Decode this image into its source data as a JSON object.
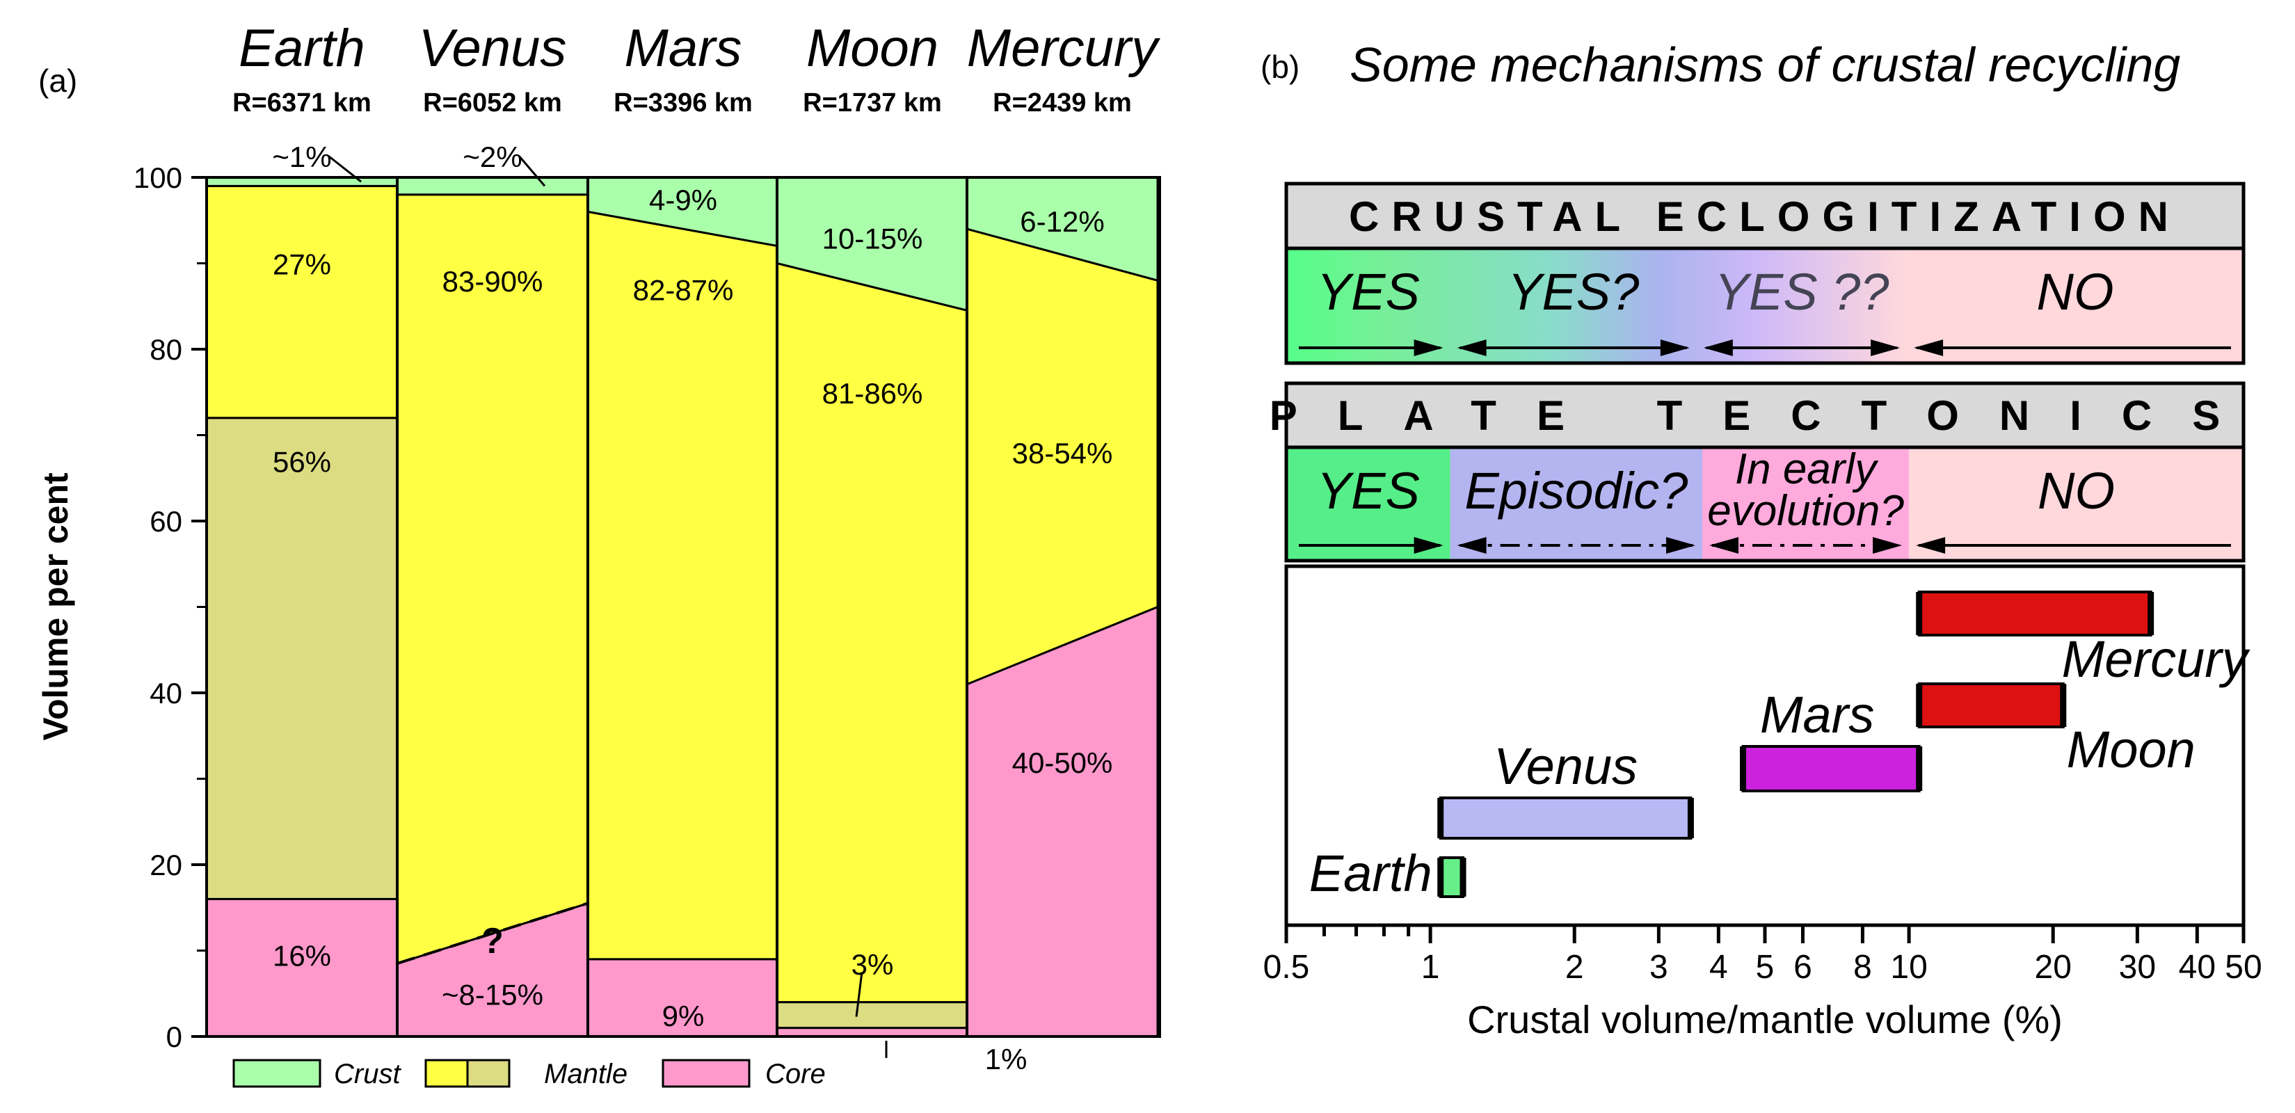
{
  "chart_data": [
    {
      "type": "bar",
      "panel_label": "(a)",
      "ylabel": "Volume per cent",
      "ylim": [
        0,
        100
      ],
      "yticks": [
        "0",
        "20",
        "40",
        "60",
        "80",
        "100"
      ],
      "categories": [
        {
          "name": "Earth",
          "radius": "R=6371 km"
        },
        {
          "name": "Venus",
          "radius": "R=6052 km"
        },
        {
          "name": "Mars",
          "radius": "R=3396 km"
        },
        {
          "name": "Moon",
          "radius": "R=1737 km"
        },
        {
          "name": "Mercury",
          "radius": "R=2439 km"
        }
      ],
      "layers": [
        {
          "name": "core",
          "color": "#ff99cc",
          "bounds": [
            [
              16,
              16
            ],
            [
              8.5,
              15.5
            ],
            [
              9,
              9
            ],
            [
              1,
              1
            ],
            [
              41,
              50
            ]
          ]
        },
        {
          "name": "lower mantle",
          "color": "#dcdc82",
          "bounds": [
            [
              72,
              72
            ],
            null,
            null,
            [
              4,
              4
            ],
            null
          ]
        },
        {
          "name": "mantle",
          "color": "#ffff44",
          "bounds": [
            [
              99,
              99
            ],
            [
              98,
              98
            ],
            [
              96,
              92
            ],
            [
              90,
              84.5
            ],
            [
              94,
              88
            ]
          ]
        },
        {
          "name": "crust",
          "color": "#aaffaa",
          "bounds": [
            [
              100,
              100
            ],
            [
              100,
              100
            ],
            [
              100,
              100
            ],
            [
              100,
              100
            ],
            [
              100,
              100
            ]
          ]
        }
      ],
      "value_labels": [
        {
          "text": "~1%",
          "bar": 0,
          "y": 102.5
        },
        {
          "text": "27%",
          "bar": 0,
          "y": 90
        },
        {
          "text": "56%",
          "bar": 0,
          "y": 67
        },
        {
          "text": "16%",
          "bar": 0,
          "y": 9.5
        },
        {
          "text": "~2%",
          "bar": 1,
          "y": 102.5
        },
        {
          "text": "83-90%",
          "bar": 1,
          "y": 88
        },
        {
          "text": "?",
          "bar": 1,
          "y": 11
        },
        {
          "text": "~8-15%",
          "bar": 1,
          "y": 5
        },
        {
          "text": "4-9%",
          "bar": 2,
          "y": 97.5
        },
        {
          "text": "82-87%",
          "bar": 2,
          "y": 87
        },
        {
          "text": "9%",
          "bar": 2,
          "y": 2.5
        },
        {
          "text": "10-15%",
          "bar": 3,
          "y": 93
        },
        {
          "text": "81-86%",
          "bar": 3,
          "y": 75
        },
        {
          "text": "3%",
          "bar": 3,
          "y": 8.5
        },
        {
          "text": "1%",
          "bar": 3,
          "y": -2.5
        },
        {
          "text": "6-12%",
          "bar": 4,
          "y": 95
        },
        {
          "text": "38-54%",
          "bar": 4,
          "y": 68
        },
        {
          "text": "40-50%",
          "bar": 4,
          "y": 32
        }
      ],
      "legend": [
        {
          "label": "Crust",
          "colors": [
            "#aaffaa"
          ]
        },
        {
          "label": "Mantle",
          "colors": [
            "#ffff44",
            "#dcdc82"
          ]
        },
        {
          "label": "Core",
          "colors": [
            "#ff99cc"
          ]
        }
      ]
    },
    {
      "type": "range",
      "panel_label": "(b)",
      "title": "Some mechanisms of crustal recycling",
      "xlabel": "Crustal volume/mantle volume (%)",
      "xscale": "log",
      "xlim": [
        0.5,
        50
      ],
      "xtick_labels": [
        {
          "v": 0.5,
          "t": "0.5"
        },
        {
          "v": 1,
          "t": "1"
        },
        {
          "v": 2,
          "t": "2"
        },
        {
          "v": 3,
          "t": "3"
        },
        {
          "v": 4,
          "t": "4"
        },
        {
          "v": 5,
          "t": "5"
        },
        {
          "v": 6,
          "t": "6"
        },
        {
          "v": 8,
          "t": "8"
        },
        {
          "v": 10,
          "t": "10"
        },
        {
          "v": 20,
          "t": "20"
        },
        {
          "v": 30,
          "t": "30"
        },
        {
          "v": 40,
          "t": "40"
        },
        {
          "v": 50,
          "t": "50"
        }
      ],
      "xminor_ticks": [
        0.6,
        0.7,
        0.8,
        0.9
      ],
      "bands": [
        {
          "title": "CRUSTAL ECLOGITIZATION",
          "zones": [
            {
              "label": "YES",
              "from": 0.5,
              "to": 1.1
            },
            {
              "label": "YES?",
              "from": 1.1,
              "to": 3.6
            },
            {
              "label": "YES ??",
              "from": 3.6,
              "to": 9.9
            },
            {
              "label": "NO",
              "from": 9.9,
              "to": 50
            }
          ]
        },
        {
          "title": "PLATE TECTONICS",
          "zones": [
            {
              "label": "YES",
              "from": 0.5,
              "to": 1.1
            },
            {
              "label": "Episodic?",
              "from": 1.1,
              "to": 3.7
            },
            {
              "label": "In early evolution?",
              "from": 3.7,
              "to": 10
            },
            {
              "label": "NO",
              "from": 10,
              "to": 50
            }
          ]
        }
      ],
      "ranges": [
        {
          "name": "Earth",
          "from": 1.05,
          "to": 1.17,
          "color": "#66ee88"
        },
        {
          "name": "Venus",
          "from": 1.05,
          "to": 3.5,
          "color": "#b8b8f4"
        },
        {
          "name": "Mars",
          "from": 4.5,
          "to": 10.5,
          "color": "#cc22dd"
        },
        {
          "name": "Moon",
          "from": 10.5,
          "to": 21,
          "color": "#dd1111"
        },
        {
          "name": "Mercury",
          "from": 10.5,
          "to": 32,
          "color": "#dd1111"
        }
      ]
    }
  ]
}
